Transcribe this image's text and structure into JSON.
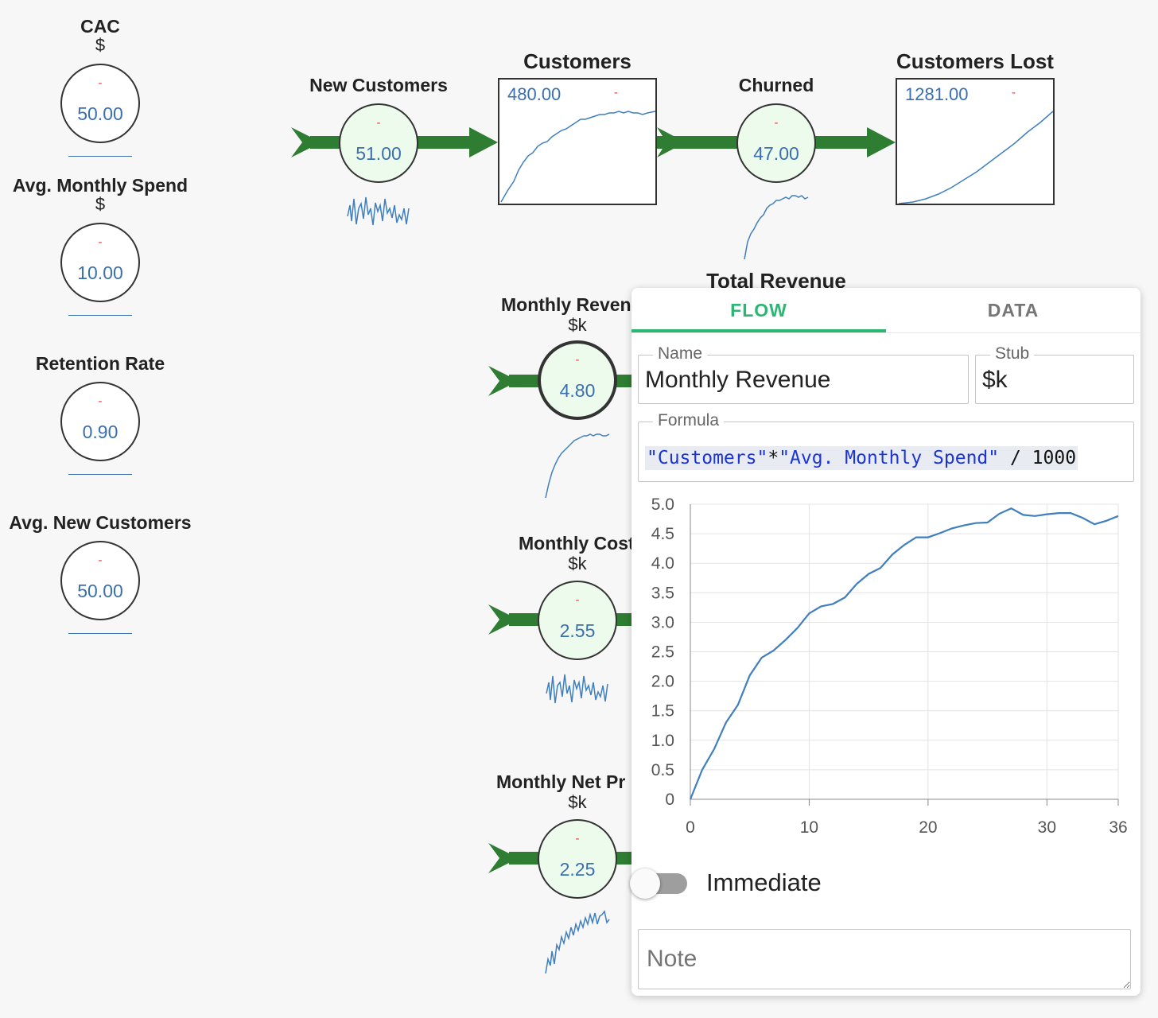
{
  "variables": [
    {
      "id": "cac",
      "name": "CAC",
      "unit": "$",
      "value": "50.00",
      "delta": "-"
    },
    {
      "id": "avg-monthly-spend",
      "name": "Avg. Monthly Spend",
      "unit": "$",
      "value": "10.00",
      "delta": "-"
    },
    {
      "id": "retention-rate",
      "name": "Retention Rate",
      "unit": "",
      "value": "0.90",
      "delta": "-"
    },
    {
      "id": "avg-new-customers",
      "name": "Avg. New Customers",
      "unit": "",
      "value": "50.00",
      "delta": "-"
    }
  ],
  "flows": {
    "new_customers": {
      "name": "New Customers",
      "value": "51.00",
      "delta": "-"
    },
    "churned": {
      "name": "Churned",
      "value": "47.00",
      "delta": "-"
    },
    "monthly_revenue": {
      "name": "Monthly Reven",
      "unit": "$k",
      "value": "4.80",
      "delta": "-"
    },
    "monthly_cost": {
      "name": "Monthly Cost",
      "unit": "$k",
      "value": "2.55",
      "delta": "-"
    },
    "monthly_net_profit": {
      "name": "Monthly Net Pr",
      "unit": "$k",
      "value": "2.25",
      "delta": "-"
    }
  },
  "stocks": {
    "customers": {
      "name": "Customers",
      "value": "480.00",
      "delta": "-"
    },
    "customers_lost": {
      "name": "Customers Lost",
      "value": "1281.00",
      "delta": "-"
    },
    "total_revenue": {
      "name": "Total Revenue"
    }
  },
  "panel": {
    "tabs": {
      "flow": "FLOW",
      "data": "DATA"
    },
    "active_tab": "FLOW",
    "name_legend": "Name",
    "name_value": "Monthly Revenue",
    "stub_legend": "Stub",
    "stub_value": "$k",
    "formula_legend": "Formula",
    "formula": {
      "q1": "\"Customers\"",
      "op": "*",
      "q2": "\"Avg. Monthly Spend\"",
      "rest": " / 1000"
    },
    "immediate_label": "Immediate",
    "immediate_on": false,
    "note_placeholder": "Note"
  },
  "chart_data": {
    "type": "line",
    "title": "",
    "xlabel": "",
    "ylabel": "",
    "xlim": [
      0,
      36
    ],
    "ylim": [
      0,
      5.0
    ],
    "xticks": [
      "0",
      "10",
      "20",
      "30",
      "36"
    ],
    "yticks": [
      "5.0",
      "4.5",
      "4.0",
      "3.5",
      "3.0",
      "2.5",
      "2.0",
      "1.5",
      "1.0",
      "0.5",
      "0"
    ],
    "grid": true,
    "x": [
      0,
      1,
      2,
      3,
      4,
      5,
      6,
      7,
      8,
      9,
      10,
      11,
      12,
      13,
      14,
      15,
      16,
      17,
      18,
      19,
      20,
      21,
      22,
      23,
      24,
      25,
      26,
      27,
      28,
      29,
      30,
      31,
      32,
      33,
      34,
      35,
      36
    ],
    "values": [
      0,
      0.5,
      0.85,
      1.3,
      1.6,
      2.1,
      2.4,
      2.52,
      2.7,
      2.9,
      3.15,
      3.27,
      3.31,
      3.42,
      3.65,
      3.82,
      3.92,
      4.15,
      4.31,
      4.44,
      4.44,
      4.51,
      4.59,
      4.64,
      4.68,
      4.69,
      4.84,
      4.93,
      4.82,
      4.8,
      4.83,
      4.85,
      4.85,
      4.77,
      4.66,
      4.72,
      4.8
    ],
    "color": "#3f7fbf"
  },
  "colors": {
    "flow_pipe": "#2e7d32",
    "accent": "#2bb673",
    "value_blue": "#3a6fb0",
    "delta_red": "#e53935"
  }
}
